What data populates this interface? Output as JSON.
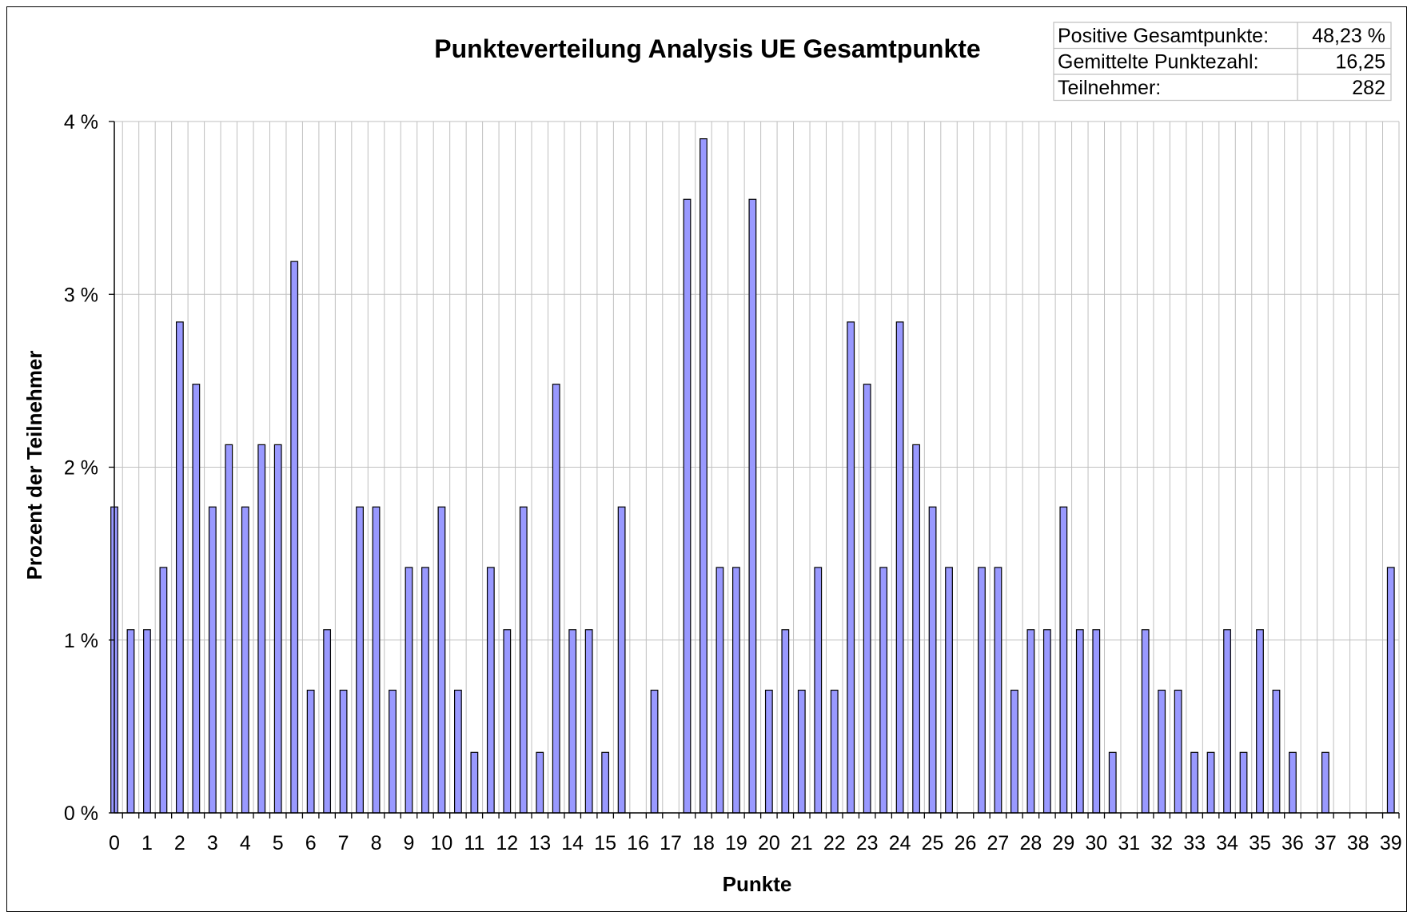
{
  "chart_data": {
    "type": "bar",
    "title": "Punkteverteilung Analysis UE Gesamtpunkte",
    "xlabel": "Punkte",
    "ylabel": "Prozent der Teilnehmer",
    "ylim": [
      0,
      4
    ],
    "yticks": [
      "0 %",
      "1 %",
      "2 %",
      "3 %",
      "4 %"
    ],
    "xtick_labels": [
      "0",
      "1",
      "2",
      "3",
      "4",
      "5",
      "6",
      "7",
      "8",
      "9",
      "10",
      "11",
      "12",
      "13",
      "14",
      "15",
      "16",
      "17",
      "18",
      "19",
      "20",
      "21",
      "22",
      "23",
      "24",
      "25",
      "26",
      "27",
      "28",
      "29",
      "30",
      "31",
      "32",
      "33",
      "34",
      "35",
      "36",
      "37",
      "38",
      "39"
    ],
    "x": [
      0,
      0.5,
      1,
      1.5,
      2,
      2.5,
      3,
      3.5,
      4,
      4.5,
      5,
      5.5,
      6,
      6.5,
      7,
      7.5,
      8,
      8.5,
      9,
      9.5,
      10,
      10.5,
      11,
      11.5,
      12,
      12.5,
      13,
      13.5,
      14,
      14.5,
      15,
      15.5,
      16,
      16.5,
      17,
      17.5,
      18,
      18.5,
      19,
      19.5,
      20,
      20.5,
      21,
      21.5,
      22,
      22.5,
      23,
      23.5,
      24,
      24.5,
      25,
      25.5,
      26,
      26.5,
      27,
      27.5,
      28,
      28.5,
      29,
      29.5,
      30,
      30.5,
      31,
      31.5,
      32,
      32.5,
      33,
      33.5,
      34,
      34.5,
      35,
      35.5,
      36,
      36.5,
      37,
      37.5,
      38,
      38.5,
      39
    ],
    "values": [
      1.77,
      1.06,
      1.06,
      1.42,
      2.84,
      2.48,
      1.77,
      2.13,
      1.77,
      2.13,
      2.13,
      3.19,
      0.71,
      1.06,
      0.71,
      1.77,
      1.77,
      0.71,
      1.42,
      1.42,
      1.77,
      0.71,
      0.35,
      1.42,
      1.06,
      1.77,
      0.35,
      2.48,
      1.06,
      1.06,
      0.35,
      1.77,
      0,
      0.71,
      0,
      3.55,
      3.9,
      1.42,
      1.42,
      3.55,
      0.71,
      1.06,
      0.71,
      1.42,
      0.71,
      2.84,
      2.48,
      1.42,
      2.84,
      2.13,
      1.77,
      1.42,
      0,
      1.42,
      1.42,
      0.71,
      1.06,
      1.06,
      1.77,
      1.06,
      1.06,
      0.35,
      0,
      1.06,
      0.71,
      0.71,
      0.35,
      0.35,
      1.06,
      0.35,
      1.06,
      0.71,
      0.35,
      0,
      0.35,
      0,
      0,
      0,
      1.42
    ],
    "bar_color": "#9999ff",
    "grid": true,
    "stats_table": [
      {
        "label": "Positive Gesamtpunkte:",
        "value": "48,23 %"
      },
      {
        "label": "Gemittelte Punktezahl:",
        "value": "16,25"
      },
      {
        "label": "Teilnehmer:",
        "value": "282"
      }
    ]
  }
}
